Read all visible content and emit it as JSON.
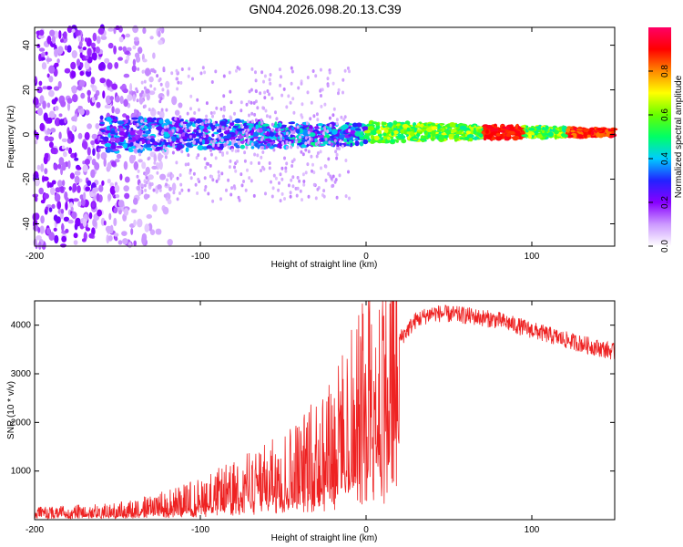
{
  "title": "GN04.2026.098.20.13.C39",
  "chart_data": [
    {
      "type": "heatmap",
      "xlabel": "Height of straight line (km)",
      "ylabel": "Frequency (Hz)",
      "xlim": [
        -200,
        150
      ],
      "ylim": [
        -50,
        48
      ],
      "xticks": [
        -200,
        -100,
        0,
        100
      ],
      "yticks": [
        -40,
        -20,
        0,
        20,
        40
      ],
      "colorbar": {
        "label": "Normalized spectral amplitude",
        "range": [
          0,
          1
        ],
        "ticks": [
          0.0,
          0.2,
          0.4,
          0.6,
          0.8
        ],
        "colors": [
          "#ffffff",
          "#cc99ff",
          "#8800ff",
          "#2222ff",
          "#00ccff",
          "#00ff66",
          "#66ff00",
          "#ffff00",
          "#ff8800",
          "#ff0000",
          "#ff0066"
        ]
      },
      "description_of_pattern": {
        "noise_region_x": [
          -200,
          -120
        ],
        "band_region_x": [
          -160,
          150
        ],
        "band_halfwidth_hz_at_start": 8,
        "band_halfwidth_hz_at_end": 1.5
      }
    },
    {
      "type": "line",
      "xlabel": "Height of straight line (km)",
      "ylabel": "SNR (10 * v/v)",
      "xlim": [
        -200,
        150
      ],
      "ylim": [
        0,
        4500
      ],
      "xticks": [
        -200,
        -100,
        0,
        100
      ],
      "yticks": [
        1000,
        2000,
        3000,
        4000
      ],
      "series": [
        {
          "name": "SNR",
          "color": "#ee2222",
          "envelope_x": [
            -200,
            -150,
            -120,
            -100,
            -80,
            -60,
            -40,
            -20,
            -10,
            0,
            10,
            20,
            30,
            40,
            60,
            80,
            100,
            120,
            150
          ],
          "envelope_mean": [
            150,
            200,
            350,
            500,
            700,
            900,
            1200,
            1700,
            2200,
            2700,
            3200,
            3700,
            4100,
            4250,
            4200,
            4100,
            3900,
            3700,
            3450
          ]
        }
      ]
    }
  ]
}
